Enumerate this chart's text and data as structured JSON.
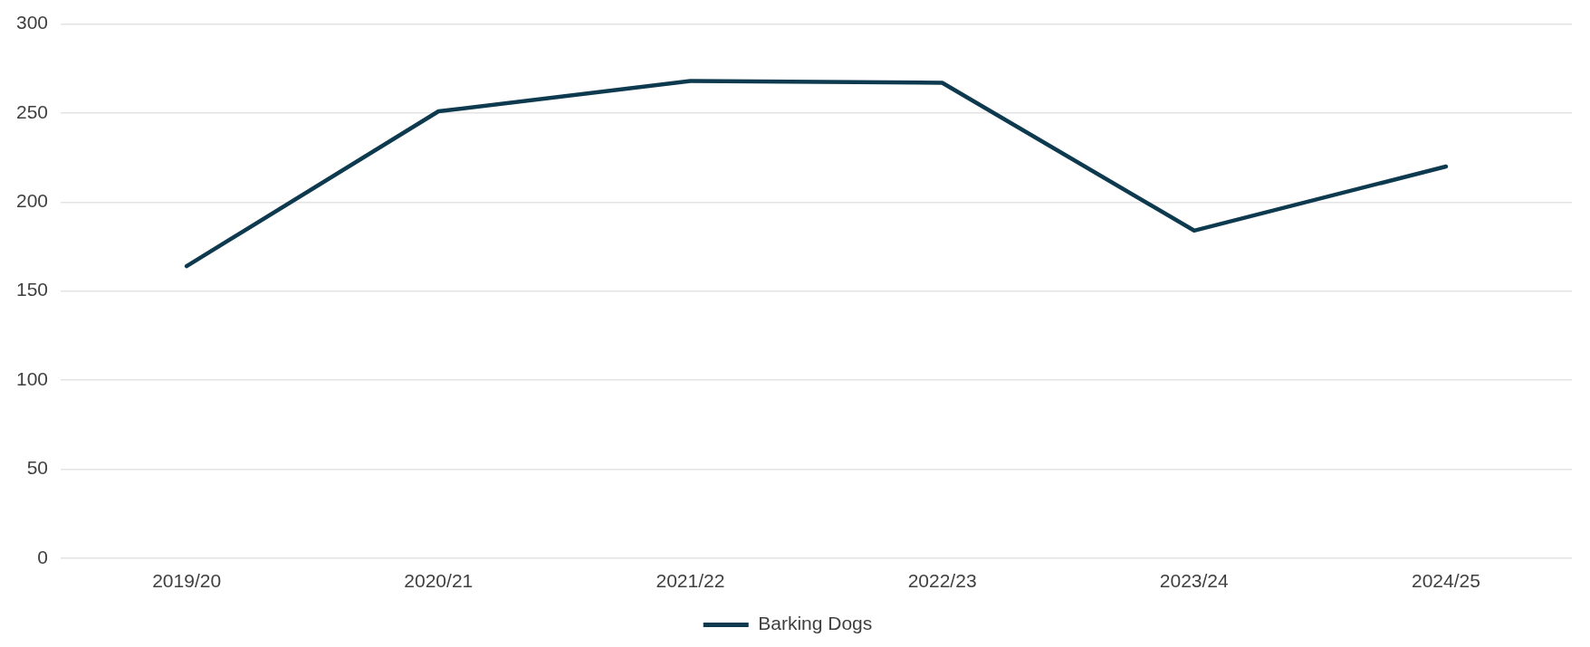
{
  "chart_data": {
    "type": "line",
    "categories": [
      "2019/20",
      "2020/21",
      "2021/22",
      "2022/23",
      "2023/24",
      "2024/25"
    ],
    "series": [
      {
        "name": "Barking Dogs",
        "color": "#0e3a4f",
        "values": [
          164,
          251,
          268,
          267,
          184,
          220
        ]
      }
    ],
    "ylim": [
      0,
      300
    ],
    "yticks": [
      0,
      50,
      100,
      150,
      200,
      250,
      300
    ],
    "grid": "y",
    "legend": "bottom",
    "marker": "none",
    "line_style": "solid"
  }
}
